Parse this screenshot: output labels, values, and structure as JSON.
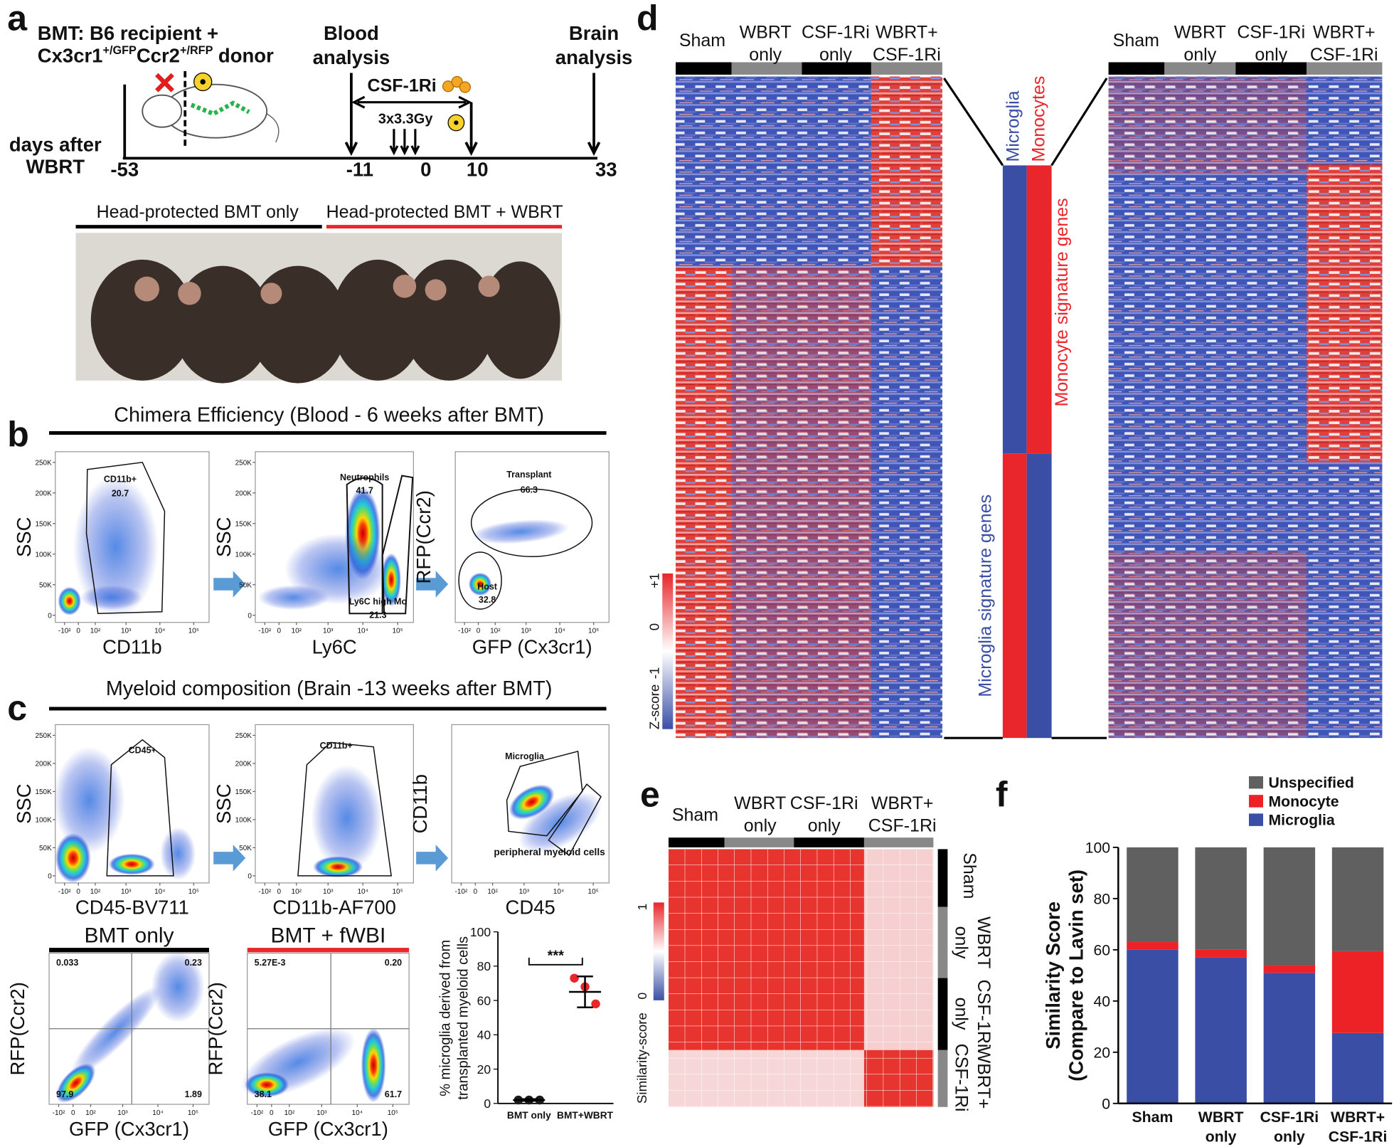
{
  "panel_labels": [
    "a",
    "b",
    "c",
    "d",
    "e",
    "f"
  ],
  "a": {
    "recipient": "BMT: B6 recipient +",
    "donor": [
      "Cx3cr1",
      "+/GFP",
      "Ccr2",
      "+/RFP",
      "donor"
    ],
    "blood": [
      "Blood",
      "analysis"
    ],
    "brain": [
      "Brain",
      "analysis"
    ],
    "treatment": "CSF-1Ri",
    "dose": "3x3.3Gy",
    "days_label": [
      "days after",
      "WBRT"
    ],
    "days": [
      -53,
      -11,
      0,
      10,
      33
    ],
    "groups": [
      "Head-protected BMT only",
      "Head-protected BMT + WBRT"
    ]
  },
  "ssc_ticks": [
    {
      "value": 250000,
      "label": "250K"
    },
    {
      "value": 200000,
      "label": "200K"
    },
    {
      "value": 150000,
      "label": "150K"
    },
    {
      "value": 100000,
      "label": "100K"
    },
    {
      "value": 50000,
      "label": "50K"
    },
    0
  ],
  "log_ticks": [
    {
      "value": -100,
      "label": "-10²"
    },
    0,
    {
      "value": 100,
      "label": "10²"
    },
    {
      "value": 1000,
      "label": "10³"
    },
    {
      "value": 10000,
      "label": "10⁴"
    },
    {
      "value": 100000,
      "label": "10⁵"
    }
  ],
  "b": {
    "title": "Chimera Efficiency (Blood - 6 weeks after BMT)",
    "plots": [
      {
        "y_label": "SSC",
        "x_label": "CD11b",
        "gates": [
          {
            "name": "CD11b+",
            "pct": 20.7
          }
        ]
      },
      {
        "y_label": "SSC",
        "x_label": "Ly6C",
        "gates": [
          {
            "name": "Neutrophils",
            "pct": 41.7
          },
          {
            "name": "Ly6C high Mo",
            "pct": 21.3
          }
        ]
      },
      {
        "y_label": "RFP(Ccr2)",
        "x_label": "GFP (Cx3cr1)",
        "gates": [
          {
            "name": "Transplant",
            "pct": 66.3
          },
          {
            "name": "Host",
            "pct": 32.8
          }
        ]
      }
    ]
  },
  "c": {
    "title": "Myeloid composition (Brain -13 weeks after BMT)",
    "plots": [
      {
        "y_label": "SSC",
        "x_label": "CD45-BV711",
        "gates": [
          {
            "name": "CD45+"
          }
        ]
      },
      {
        "y_label": "SSC",
        "x_label": "CD11b-AF700",
        "gates": [
          {
            "name": "CD11b+"
          }
        ]
      },
      {
        "y_label": "CD11b",
        "x_label": "CD45",
        "gates": [
          {
            "name": "Microglia"
          },
          {
            "name": "peripheral myeloid cells"
          }
        ]
      }
    ],
    "quadrants": [
      {
        "title": "BMT only",
        "y_label": "RFP(Ccr2)",
        "x_label": "GFP (Cx3cr1)",
        "pct": [
          0.033,
          0.23,
          97.9,
          1.89
        ]
      },
      {
        "title": "BMT + fWBI",
        "y_label": "RFP(Ccr2)",
        "x_label": "GFP (Cx3cr1)",
        "pct": [
          {
            "value": 0.00527,
            "label": "5.27E-3"
          },
          {
            "value": 0.2,
            "label": "0.20"
          },
          38.1,
          61.7
        ]
      }
    ]
  },
  "d": {
    "groups": [
      [
        "Sham"
      ],
      [
        "WBRT",
        "only"
      ],
      [
        "CSF-1Ri",
        "only"
      ],
      [
        "WBRT+",
        "CSF-1Ri"
      ]
    ],
    "colorbar": [
      {
        "value": 1,
        "label": "+1"
      },
      0,
      -1
    ],
    "colorbar_label": "Z-score",
    "signature_columns": [
      "Microglia",
      "Monocytes"
    ],
    "signature_labels": [
      "Monocyte signature genes",
      "Microglia signature genes"
    ]
  },
  "e": {
    "groups": [
      [
        "Sham"
      ],
      [
        "WBRT",
        "only"
      ],
      [
        "CSF-1Ri",
        "only"
      ],
      [
        "WBRT+",
        "CSF-1Ri"
      ]
    ],
    "colorbar": [
      1,
      0
    ],
    "colorbar_label": "Similarity-score"
  },
  "chart_data": [
    {
      "type": "scatter",
      "y_label": [
        "% microglia derived from",
        "transplanted myeloid cells"
      ],
      "categories": [
        "BMT only",
        "BMT+WBRT"
      ],
      "values": [
        [
          2,
          2,
          2
        ],
        [
          73,
          68,
          58
        ]
      ],
      "colors": [
        "#1a1a1a",
        "#e8262b"
      ],
      "mean": [
        2,
        65
      ],
      "error": [
        0.5,
        9
      ],
      "significance": "***",
      "ylim": [
        0,
        100
      ],
      "yticks": [
        0,
        20,
        40,
        60,
        80,
        100
      ]
    },
    {
      "type": "bar",
      "stacked": true,
      "y_label": [
        "Similarity Score",
        "(Compare to Lavin set)"
      ],
      "categories": [
        "Sham",
        "WBRT only",
        "CSF-1Ri only",
        "WBRT+ CSF-1Ri"
      ],
      "series": [
        {
          "name": "Microglia",
          "color": "#3a4ea6",
          "values": [
            60,
            57,
            51,
            27.5
          ]
        },
        {
          "name": "Monocyte",
          "color": "#ec2227",
          "values": [
            3,
            3,
            3,
            32
          ]
        },
        {
          "name": "Unspecified",
          "color": "#606060",
          "values": [
            37,
            40,
            46,
            40.5
          ]
        }
      ],
      "ylim": [
        0,
        100
      ],
      "yticks": [
        0,
        20,
        40,
        60,
        80,
        100
      ]
    }
  ]
}
